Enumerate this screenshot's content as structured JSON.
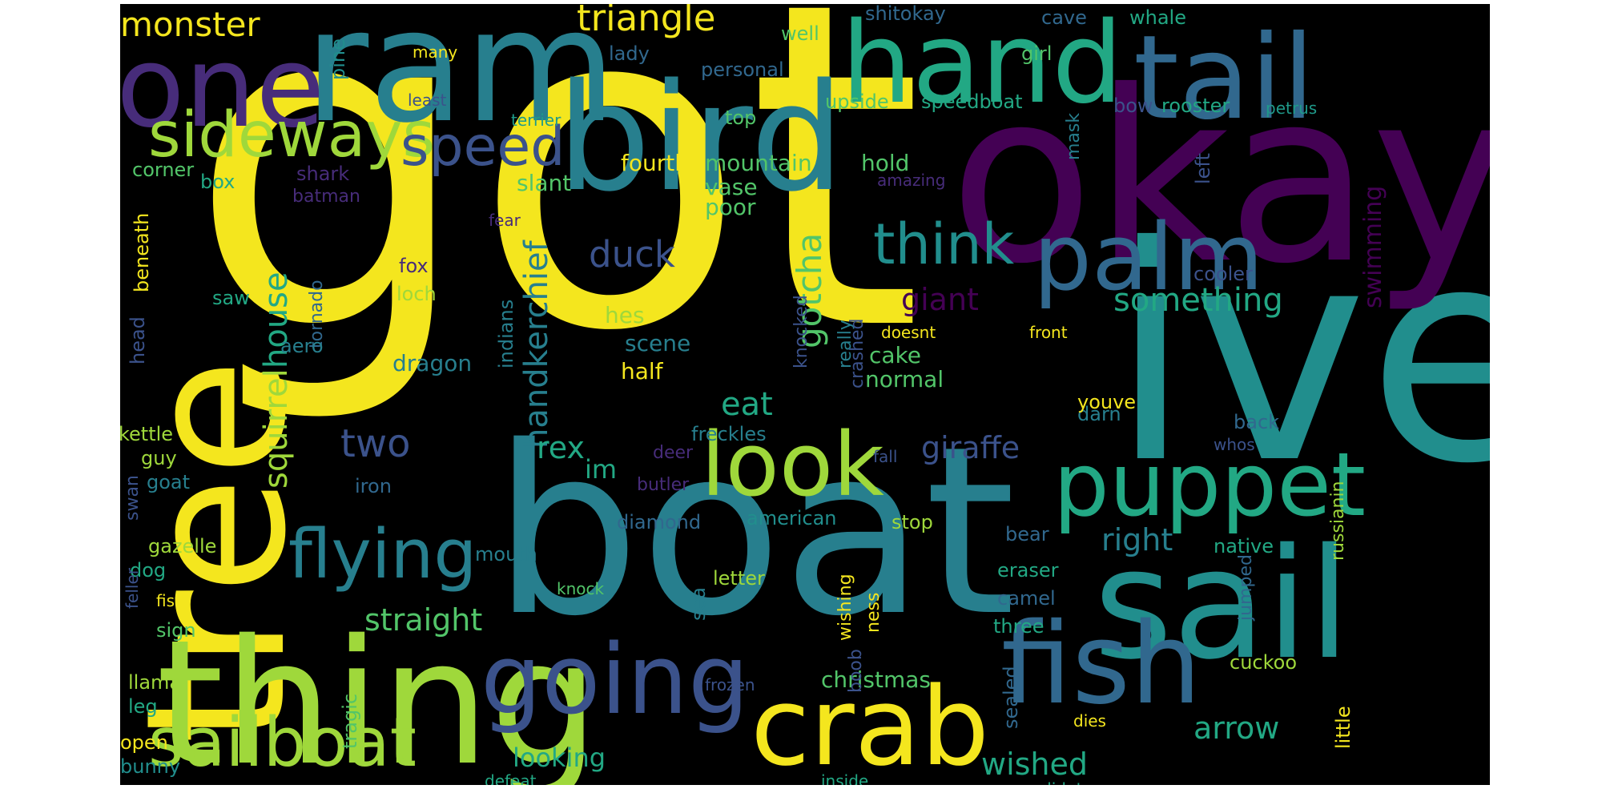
{
  "words": [
    "got",
    "ive",
    "okay",
    "boat",
    "tree",
    "bird",
    "thing",
    "sail",
    "ram",
    "one",
    "tail",
    "hand",
    "palm",
    "fish",
    "crab",
    "going",
    "puppet",
    "look",
    "sailboat",
    "flying",
    "sideways",
    "speed",
    "think",
    "triangle",
    "monster",
    "two",
    "duck",
    "gotcha",
    "squirrel",
    "house",
    "handkerchief",
    "something",
    "giant",
    "giraffe",
    "swimming",
    "straight",
    "arrow",
    "right",
    "wished",
    "looking",
    "rex",
    "eat",
    "im",
    "christmas",
    "half",
    "hes",
    "scene",
    "dragon",
    "slant",
    "fourth",
    "mountain",
    "vase",
    "poor",
    "hold",
    "cake",
    "normal",
    "shitokay",
    "cave",
    "whale",
    "well",
    "lady",
    "personal",
    "girl",
    "upside",
    "speedboat",
    "bow",
    "rooster",
    "petrus",
    "top",
    "mask",
    "left",
    "amazing",
    "corner",
    "shark",
    "box",
    "batman",
    "beneath",
    "fear",
    "loch",
    "fox",
    "saw",
    "tornado",
    "aero",
    "head",
    "indians",
    "knocked",
    "really",
    "crashed",
    "doesnt",
    "front",
    "cooler",
    "kettle",
    "guy",
    "swan",
    "goat",
    "iron",
    "deer",
    "butler",
    "diamond",
    "american",
    "stop",
    "bear",
    "native",
    "russianin",
    "gazelle",
    "dog",
    "mouth",
    "feller",
    "fist",
    "knock",
    "sign",
    "sea",
    "letter",
    "wishing",
    "ness",
    "eraser",
    "camel",
    "three",
    "jumped",
    "cuckoo",
    "tragic",
    "llama",
    "leg",
    "open",
    "bunny",
    "defeat",
    "inside",
    "frozen",
    "boob",
    "sealed",
    "dies",
    "little",
    "didnt",
    "freckles",
    "fall",
    "whos",
    "back",
    "darn",
    "youve",
    "many",
    "least",
    "terrier",
    "pine"
  ]
}
